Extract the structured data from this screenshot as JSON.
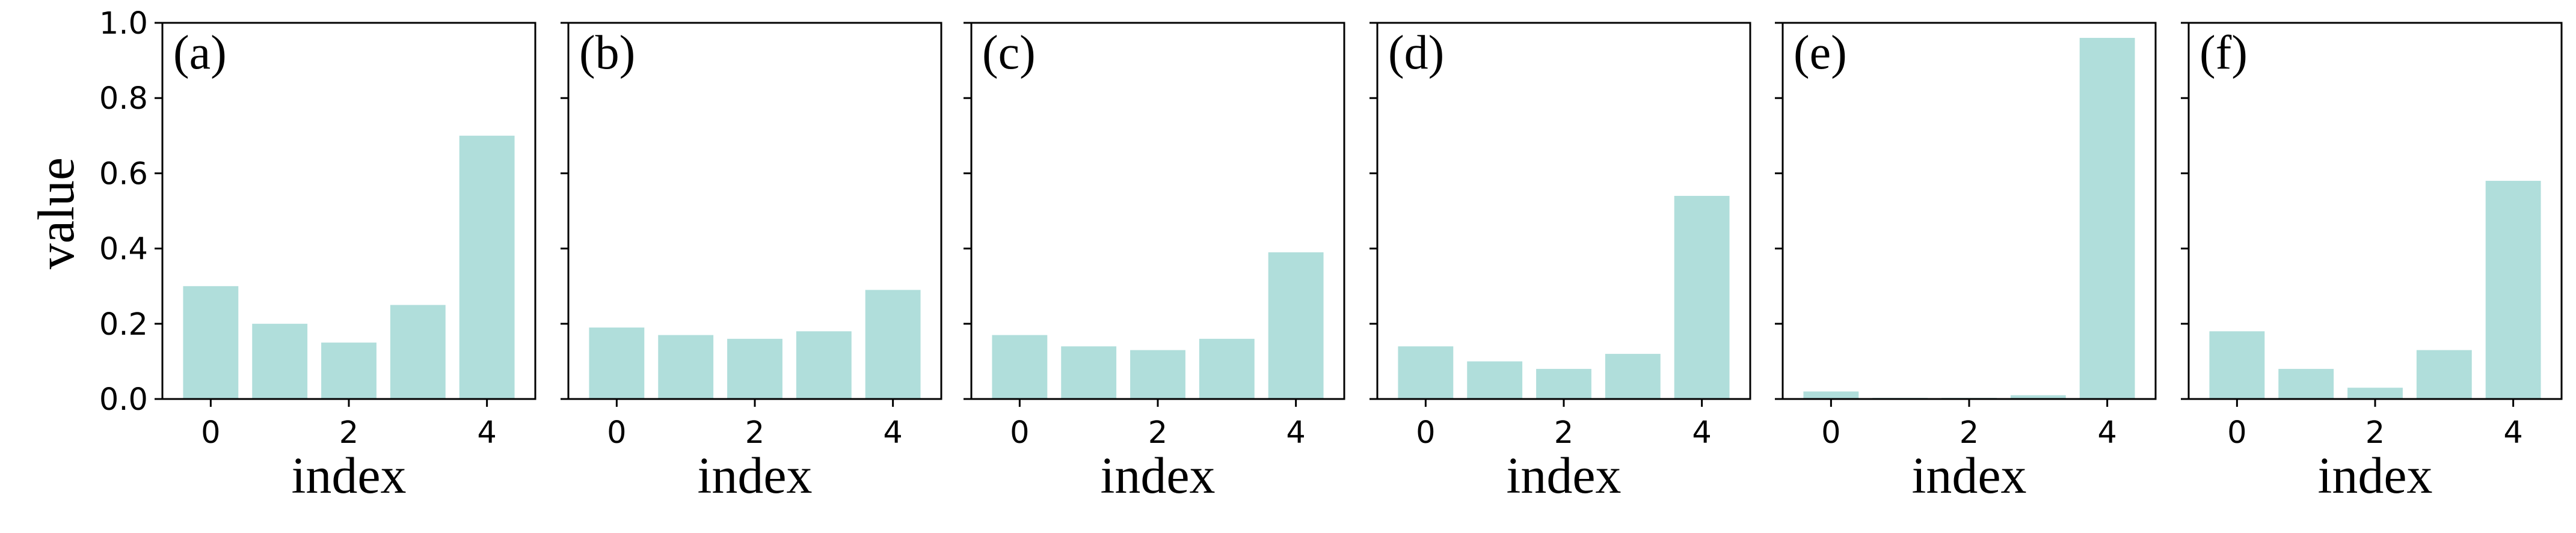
{
  "chart_data": {
    "type": "bar",
    "bar_color": "#b0dedb",
    "ylabel": "value",
    "xlabel": "index",
    "ylim": [
      0,
      1.0
    ],
    "yticks": [
      "0.0",
      "0.2",
      "0.4",
      "0.6",
      "0.8",
      "1.0"
    ],
    "xticks": [
      "0",
      "2",
      "4"
    ],
    "categories": [
      0,
      1,
      2,
      3,
      4
    ],
    "panels": [
      {
        "label": "(a)",
        "values": [
          0.3,
          0.2,
          0.15,
          0.25,
          0.7
        ]
      },
      {
        "label": "(b)",
        "values": [
          0.19,
          0.17,
          0.16,
          0.18,
          0.29
        ]
      },
      {
        "label": "(c)",
        "values": [
          0.17,
          0.14,
          0.13,
          0.16,
          0.39
        ]
      },
      {
        "label": "(d)",
        "values": [
          0.14,
          0.1,
          0.08,
          0.12,
          0.54
        ]
      },
      {
        "label": "(e)",
        "values": [
          0.02,
          0.003,
          0.003,
          0.01,
          0.96
        ]
      },
      {
        "label": "(f)",
        "values": [
          0.18,
          0.08,
          0.03,
          0.13,
          0.58
        ]
      }
    ]
  }
}
